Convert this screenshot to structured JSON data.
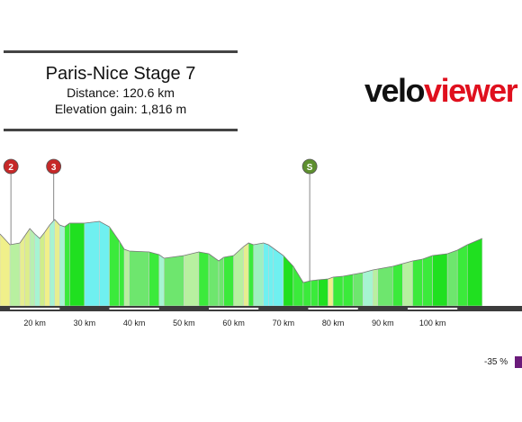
{
  "header": {
    "title": "Paris-Nice Stage 7",
    "distance": "Distance: 120.6 km",
    "elevation": "Elevation gain: 1,816 m"
  },
  "logo": {
    "part1": "velo",
    "part2": "viewer"
  },
  "legend": {
    "label": "-35 %",
    "color": "#6a1b7a"
  },
  "chart_data": {
    "type": "area",
    "xlabel": "",
    "ylabel": "",
    "xunit": "km",
    "xlim": [
      13,
      118
    ],
    "x_ticks": [
      20,
      30,
      40,
      50,
      60,
      70,
      80,
      90,
      100
    ],
    "x_tick_labels": [
      "20 km",
      "30 km",
      "40 km",
      "50 km",
      "60 km",
      "70 km",
      "80 km",
      "90 km",
      "100 km"
    ],
    "markers": [
      {
        "label": "2",
        "km": 15.2,
        "color": "#c62828"
      },
      {
        "label": "3",
        "km": 23.8,
        "color": "#c62828"
      },
      {
        "label": "S",
        "km": 75.3,
        "color": "#5d8f2e"
      }
    ],
    "profile": [
      [
        13,
        260
      ],
      [
        15,
        272
      ],
      [
        17,
        270
      ],
      [
        18,
        262
      ],
      [
        19,
        254
      ],
      [
        20,
        260
      ],
      [
        21,
        265
      ],
      [
        22,
        258
      ],
      [
        23,
        250
      ],
      [
        24,
        244
      ],
      [
        25,
        250
      ],
      [
        26,
        252
      ],
      [
        27,
        248
      ],
      [
        30,
        248
      ],
      [
        33,
        246
      ],
      [
        35,
        252
      ],
      [
        37,
        268
      ],
      [
        38,
        277
      ],
      [
        39,
        279
      ],
      [
        43,
        280
      ],
      [
        45,
        283
      ],
      [
        46,
        287
      ],
      [
        50,
        284
      ],
      [
        53,
        280
      ],
      [
        55,
        282
      ],
      [
        57,
        290
      ],
      [
        58,
        286
      ],
      [
        60,
        284
      ],
      [
        62,
        274
      ],
      [
        63,
        270
      ],
      [
        64,
        272
      ],
      [
        66,
        270
      ],
      [
        67,
        272
      ],
      [
        68,
        276
      ],
      [
        70,
        284
      ],
      [
        72,
        296
      ],
      [
        74,
        314
      ],
      [
        75.5,
        312
      ],
      [
        77,
        311
      ],
      [
        79,
        310
      ],
      [
        80,
        308
      ],
      [
        82,
        307
      ],
      [
        84,
        305
      ],
      [
        86,
        303
      ],
      [
        88,
        300
      ],
      [
        89,
        299
      ],
      [
        92,
        296
      ],
      [
        94,
        293
      ],
      [
        96,
        290
      ],
      [
        98,
        288
      ],
      [
        100,
        284
      ],
      [
        103,
        282
      ],
      [
        105,
        278
      ],
      [
        107,
        272
      ],
      [
        110,
        265
      ]
    ],
    "segment_colors": [
      "#f0f08a",
      "#b8f0a0",
      "#e6ee90",
      "#dcee8a",
      "#b8f0b0",
      "#a6f4d2",
      "#cfee8a",
      "#f0f08a",
      "#a6f4d2",
      "#e6ee90",
      "#a6f4d2",
      "#3bea3b",
      "#20e020",
      "#6ff0f0",
      "#6ff0f0",
      "#3bea3b",
      "#3bea3b",
      "#b8f0a0",
      "#6ee66e",
      "#3bea3b",
      "#a6f4d2",
      "#6ee66e",
      "#b8f0a0",
      "#3bea3b",
      "#6ee66e",
      "#6ee66e",
      "#3bea3b",
      "#b8f0a0",
      "#e6ee90",
      "#3bea3b",
      "#9ef0c0",
      "#6ff0f0",
      "#6ff0f0",
      "#6ff0f0",
      "#20e020",
      "#3bea3b",
      "#3bea3b",
      "#3bea3b",
      "#20e020",
      "#f0f08a",
      "#3bea3b",
      "#3bea3b",
      "#6ee66e",
      "#a6f4d2",
      "#b8f0a0",
      "#6ee66e",
      "#3bea3b",
      "#b8f0a0",
      "#3bea3b",
      "#3bea3b",
      "#20e020",
      "#6ee66e",
      "#3bea3b",
      "#20e020"
    ]
  }
}
